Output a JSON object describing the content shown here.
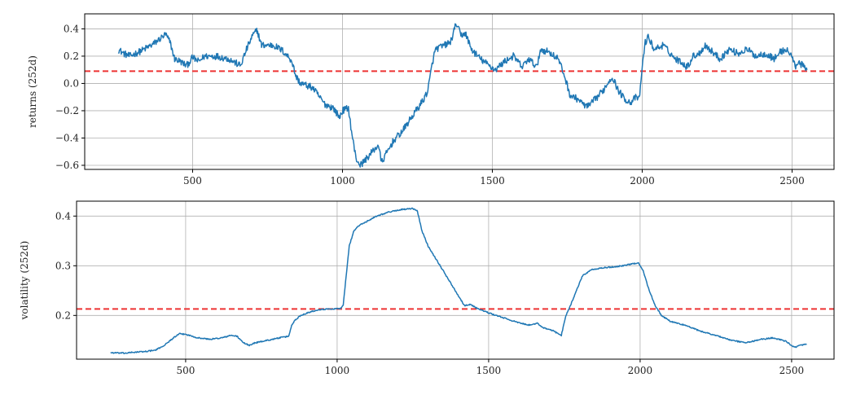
{
  "chart_data": [
    {
      "type": "line",
      "ylabel": "returns (252d)",
      "xlabel": "",
      "xlim": [
        140,
        2640
      ],
      "ylim": [
        -0.63,
        0.51
      ],
      "xticks": [
        500,
        1000,
        1500,
        2000,
        2500
      ],
      "yticks": [
        -0.6,
        -0.4,
        -0.2,
        0.0,
        0.2,
        0.4
      ],
      "ytick_labels": [
        "−0.6",
        "−0.4",
        "−0.2",
        "0.0",
        "0.2",
        "0.4"
      ],
      "xtick_labels": [
        "500",
        "1000",
        "1500",
        "2000",
        "2500"
      ],
      "grid": true,
      "reference_line": {
        "y": 0.09,
        "color": "#ee3333",
        "style": "dashed"
      },
      "series": [
        {
          "color": "#1f77b4",
          "noise": 0.025,
          "points": [
            [
              252,
              0.25
            ],
            [
              270,
              0.22
            ],
            [
              290,
              0.2
            ],
            [
              330,
              0.24
            ],
            [
              370,
              0.29
            ],
            [
              410,
              0.36
            ],
            [
              425,
              0.3
            ],
            [
              440,
              0.18
            ],
            [
              460,
              0.16
            ],
            [
              480,
              0.13
            ],
            [
              500,
              0.19
            ],
            [
              520,
              0.16
            ],
            [
              540,
              0.2
            ],
            [
              580,
              0.2
            ],
            [
              620,
              0.18
            ],
            [
              660,
              0.13
            ],
            [
              680,
              0.25
            ],
            [
              700,
              0.35
            ],
            [
              715,
              0.39
            ],
            [
              730,
              0.28
            ],
            [
              770,
              0.28
            ],
            [
              800,
              0.24
            ],
            [
              830,
              0.17
            ],
            [
              845,
              0.05
            ],
            [
              860,
              0.0
            ],
            [
              900,
              -0.03
            ],
            [
              940,
              -0.15
            ],
            [
              970,
              -0.18
            ],
            [
              990,
              -0.25
            ],
            [
              1000,
              -0.2
            ],
            [
              1020,
              -0.18
            ],
            [
              1030,
              -0.35
            ],
            [
              1045,
              -0.55
            ],
            [
              1060,
              -0.6
            ],
            [
              1080,
              -0.55
            ],
            [
              1100,
              -0.5
            ],
            [
              1120,
              -0.45
            ],
            [
              1130,
              -0.58
            ],
            [
              1150,
              -0.5
            ],
            [
              1170,
              -0.42
            ],
            [
              1200,
              -0.35
            ],
            [
              1230,
              -0.25
            ],
            [
              1270,
              -0.12
            ],
            [
              1285,
              -0.05
            ],
            [
              1300,
              0.15
            ],
            [
              1310,
              0.25
            ],
            [
              1330,
              0.27
            ],
            [
              1360,
              0.3
            ],
            [
              1380,
              0.44
            ],
            [
              1395,
              0.35
            ],
            [
              1410,
              0.37
            ],
            [
              1430,
              0.25
            ],
            [
              1460,
              0.18
            ],
            [
              1490,
              0.13
            ],
            [
              1510,
              0.1
            ],
            [
              1540,
              0.16
            ],
            [
              1570,
              0.2
            ],
            [
              1600,
              0.12
            ],
            [
              1620,
              0.18
            ],
            [
              1650,
              0.12
            ],
            [
              1660,
              0.25
            ],
            [
              1690,
              0.23
            ],
            [
              1720,
              0.18
            ],
            [
              1740,
              0.06
            ],
            [
              1760,
              -0.09
            ],
            [
              1790,
              -0.12
            ],
            [
              1800,
              -0.15
            ],
            [
              1820,
              -0.17
            ],
            [
              1850,
              -0.1
            ],
            [
              1870,
              -0.05
            ],
            [
              1890,
              0.02
            ],
            [
              1900,
              0.05
            ],
            [
              1920,
              -0.05
            ],
            [
              1940,
              -0.11
            ],
            [
              1960,
              -0.14
            ],
            [
              1980,
              -0.1
            ],
            [
              1990,
              -0.12
            ],
            [
              2000,
              0.12
            ],
            [
              2010,
              0.3
            ],
            [
              2020,
              0.34
            ],
            [
              2040,
              0.25
            ],
            [
              2070,
              0.28
            ],
            [
              2090,
              0.23
            ],
            [
              2110,
              0.18
            ],
            [
              2130,
              0.16
            ],
            [
              2150,
              0.12
            ],
            [
              2170,
              0.2
            ],
            [
              2190,
              0.22
            ],
            [
              2210,
              0.28
            ],
            [
              2230,
              0.24
            ],
            [
              2260,
              0.18
            ],
            [
              2290,
              0.25
            ],
            [
              2320,
              0.22
            ],
            [
              2350,
              0.25
            ],
            [
              2380,
              0.2
            ],
            [
              2410,
              0.22
            ],
            [
              2440,
              0.18
            ],
            [
              2460,
              0.23
            ],
            [
              2480,
              0.25
            ],
            [
              2500,
              0.2
            ],
            [
              2510,
              0.12
            ],
            [
              2520,
              0.16
            ],
            [
              2540,
              0.12
            ],
            [
              2550,
              0.1
            ]
          ]
        }
      ]
    },
    {
      "type": "line",
      "ylabel": "volatility (252d)",
      "xlabel": "",
      "xlim": [
        140,
        2640
      ],
      "ylim": [
        0.112,
        0.43
      ],
      "xticks": [
        500,
        1000,
        1500,
        2000,
        2500
      ],
      "yticks": [
        0.2,
        0.3,
        0.4
      ],
      "ytick_labels": [
        "0.2",
        "0.3",
        "0.4"
      ],
      "xtick_labels": [
        "500",
        "1000",
        "1500",
        "2000",
        "2500"
      ],
      "grid": true,
      "reference_line": {
        "y": 0.213,
        "color": "#ee3333",
        "style": "dashed"
      },
      "series": [
        {
          "color": "#1f77b4",
          "noise": 0.0012,
          "points": [
            [
              252,
              0.125
            ],
            [
              300,
              0.124
            ],
            [
              330,
              0.126
            ],
            [
              360,
              0.127
            ],
            [
              400,
              0.13
            ],
            [
              430,
              0.14
            ],
            [
              460,
              0.155
            ],
            [
              480,
              0.163
            ],
            [
              500,
              0.162
            ],
            [
              540,
              0.155
            ],
            [
              580,
              0.152
            ],
            [
              620,
              0.155
            ],
            [
              650,
              0.16
            ],
            [
              670,
              0.158
            ],
            [
              690,
              0.145
            ],
            [
              710,
              0.14
            ],
            [
              730,
              0.145
            ],
            [
              770,
              0.15
            ],
            [
              810,
              0.155
            ],
            [
              840,
              0.158
            ],
            [
              850,
              0.18
            ],
            [
              860,
              0.19
            ],
            [
              880,
              0.2
            ],
            [
              900,
              0.205
            ],
            [
              940,
              0.212
            ],
            [
              980,
              0.213
            ],
            [
              1010,
              0.214
            ],
            [
              1020,
              0.22
            ],
            [
              1030,
              0.28
            ],
            [
              1040,
              0.34
            ],
            [
              1055,
              0.37
            ],
            [
              1070,
              0.38
            ],
            [
              1100,
              0.39
            ],
            [
              1130,
              0.4
            ],
            [
              1170,
              0.408
            ],
            [
              1210,
              0.413
            ],
            [
              1250,
              0.415
            ],
            [
              1265,
              0.41
            ],
            [
              1280,
              0.37
            ],
            [
              1300,
              0.34
            ],
            [
              1340,
              0.3
            ],
            [
              1370,
              0.27
            ],
            [
              1400,
              0.24
            ],
            [
              1420,
              0.22
            ],
            [
              1440,
              0.222
            ],
            [
              1460,
              0.215
            ],
            [
              1500,
              0.205
            ],
            [
              1550,
              0.195
            ],
            [
              1600,
              0.185
            ],
            [
              1640,
              0.18
            ],
            [
              1660,
              0.185
            ],
            [
              1680,
              0.175
            ],
            [
              1710,
              0.17
            ],
            [
              1740,
              0.16
            ],
            [
              1755,
              0.2
            ],
            [
              1770,
              0.22
            ],
            [
              1790,
              0.25
            ],
            [
              1810,
              0.28
            ],
            [
              1840,
              0.292
            ],
            [
              1880,
              0.296
            ],
            [
              1920,
              0.298
            ],
            [
              1960,
              0.302
            ],
            [
              1995,
              0.306
            ],
            [
              2010,
              0.29
            ],
            [
              2030,
              0.25
            ],
            [
              2050,
              0.22
            ],
            [
              2070,
              0.2
            ],
            [
              2100,
              0.188
            ],
            [
              2150,
              0.18
            ],
            [
              2200,
              0.168
            ],
            [
              2250,
              0.16
            ],
            [
              2300,
              0.15
            ],
            [
              2350,
              0.145
            ],
            [
              2400,
              0.152
            ],
            [
              2440,
              0.155
            ],
            [
              2480,
              0.148
            ],
            [
              2510,
              0.136
            ],
            [
              2530,
              0.14
            ],
            [
              2550,
              0.142
            ]
          ]
        }
      ]
    }
  ]
}
